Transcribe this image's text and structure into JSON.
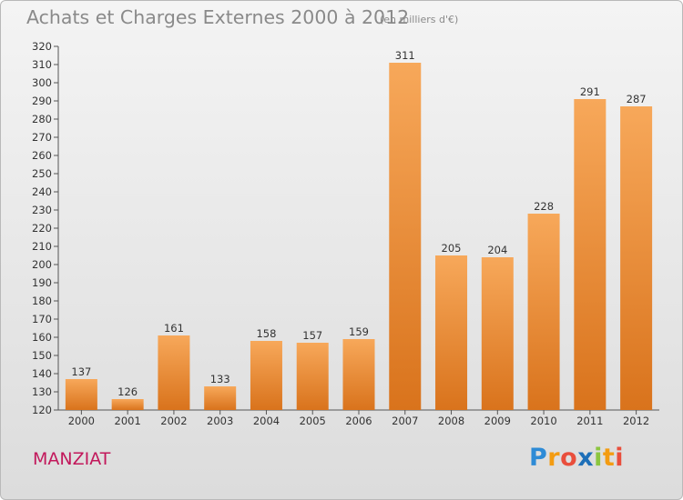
{
  "header": {
    "title": "Achats et Charges Externes 2000 à 2012",
    "subtitle": "(en milliers d'€)"
  },
  "footer": {
    "place": "MANZIAT",
    "logo_letters": [
      "P",
      "r",
      "o",
      "x",
      "i",
      "t",
      "i"
    ]
  },
  "colors": {
    "bar_light": "#f7a85a",
    "bar_dark": "#d9731c",
    "place_text": "#c2185b",
    "title_text": "#8a8a8a"
  },
  "chart_data": {
    "type": "bar",
    "title": "Achats et Charges Externes 2000 à 2012",
    "subtitle": "(en milliers d'€)",
    "xlabel": "",
    "ylabel": "",
    "categories": [
      "2000",
      "2001",
      "2002",
      "2003",
      "2004",
      "2005",
      "2006",
      "2007",
      "2008",
      "2009",
      "2010",
      "2011",
      "2012"
    ],
    "values": [
      137,
      126,
      161,
      133,
      158,
      157,
      159,
      311,
      205,
      204,
      228,
      291,
      287
    ],
    "ylim": [
      120,
      320
    ],
    "yticks": [
      120,
      130,
      140,
      150,
      160,
      170,
      180,
      190,
      200,
      210,
      220,
      230,
      240,
      250,
      260,
      270,
      280,
      290,
      300,
      310,
      320
    ],
    "grid": false,
    "data_labels": true
  }
}
